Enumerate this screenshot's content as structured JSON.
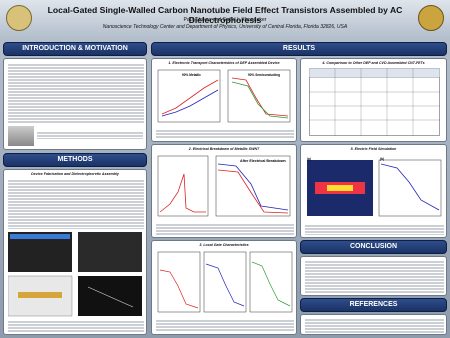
{
  "header": {
    "title": "Local-Gated Single-Walled Carbon Nanotube Field Effect Transistors Assembled by AC Dielectrophoresis",
    "authors": "Paul Stokes and Saiful I. Khondaker",
    "affiliation": "Nanoscience Technology Center and Department of Physics, University of Central Florida, Florida 32826, USA"
  },
  "sections": {
    "intro": "INTRODUCTION & MOTIVATION",
    "methods": "METHODS",
    "results": "RESULTS",
    "conclusion": "CONCLUSION",
    "references": "REFERENCES"
  },
  "methods_subtitle": "Device Fabrication and Dielectrophoretic Assembly",
  "panels": [
    "1. Electronic Transport Characteristics of DEP Assembled Device",
    "2. Electrical Breakdown of Metallic SWNT",
    "3. Local Gate Characteristics",
    "4. Comparison to Other DEP and CVD Assembled CNT-FETs",
    "5. Electric Field Simulation"
  ],
  "labels": {
    "metallic": "90% Metallic",
    "semi": "90% Semiconducting",
    "after": "After Electrical Breakdown",
    "a": "(a)",
    "b": "(b)"
  }
}
